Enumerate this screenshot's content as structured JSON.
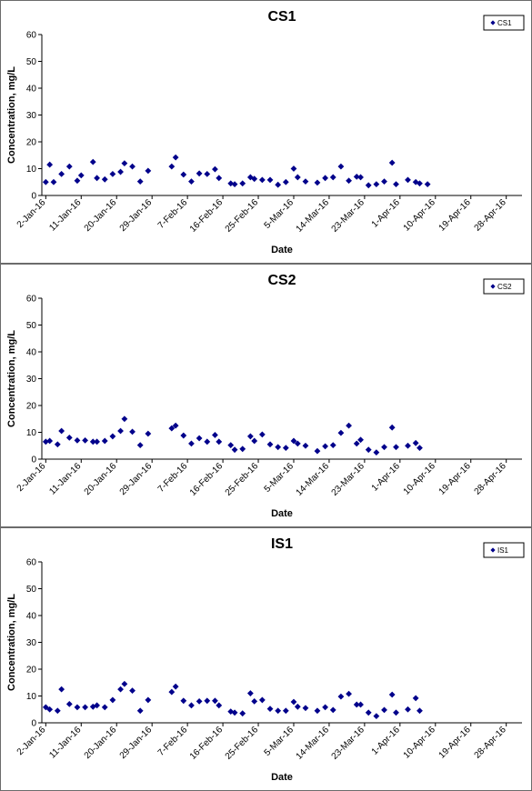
{
  "chart_data": [
    {
      "type": "scatter",
      "title": "CS1",
      "xlabel": "Date",
      "ylabel": "Concentration, mg/L",
      "ylim": [
        0,
        60
      ],
      "yticks": [
        0,
        10,
        20,
        30,
        40,
        50,
        60
      ],
      "xlim": [
        "2016-01-01",
        "2016-05-02"
      ],
      "xticks": [
        "2-Jan-16",
        "11-Jan-16",
        "20-Jan-16",
        "29-Jan-16",
        "7-Feb-16",
        "16-Feb-16",
        "25-Feb-16",
        "5-Mar-16",
        "14-Mar-16",
        "23-Mar-16",
        "1-Apr-16",
        "10-Apr-16",
        "19-Apr-16",
        "28-Apr-16"
      ],
      "legend": "top-right",
      "grid": false,
      "marker_color": "#00008b",
      "series": [
        {
          "name": "CS1",
          "points": [
            {
              "x": "2016-01-02",
              "y": 5.0
            },
            {
              "x": "2016-01-03",
              "y": 11.5
            },
            {
              "x": "2016-01-04",
              "y": 5.0
            },
            {
              "x": "2016-01-06",
              "y": 8.0
            },
            {
              "x": "2016-01-08",
              "y": 10.8
            },
            {
              "x": "2016-01-10",
              "y": 5.5
            },
            {
              "x": "2016-01-11",
              "y": 7.5
            },
            {
              "x": "2016-01-14",
              "y": 12.5
            },
            {
              "x": "2016-01-15",
              "y": 6.5
            },
            {
              "x": "2016-01-17",
              "y": 6.0
            },
            {
              "x": "2016-01-19",
              "y": 8.0
            },
            {
              "x": "2016-01-21",
              "y": 8.8
            },
            {
              "x": "2016-01-22",
              "y": 12.0
            },
            {
              "x": "2016-01-24",
              "y": 10.8
            },
            {
              "x": "2016-01-26",
              "y": 5.2
            },
            {
              "x": "2016-01-28",
              "y": 9.2
            },
            {
              "x": "2016-02-03",
              "y": 10.8
            },
            {
              "x": "2016-02-04",
              "y": 14.2
            },
            {
              "x": "2016-02-06",
              "y": 7.8
            },
            {
              "x": "2016-02-08",
              "y": 5.2
            },
            {
              "x": "2016-02-10",
              "y": 8.2
            },
            {
              "x": "2016-02-12",
              "y": 8.0
            },
            {
              "x": "2016-02-14",
              "y": 9.8
            },
            {
              "x": "2016-02-15",
              "y": 6.5
            },
            {
              "x": "2016-02-18",
              "y": 4.5
            },
            {
              "x": "2016-02-19",
              "y": 4.2
            },
            {
              "x": "2016-02-21",
              "y": 4.5
            },
            {
              "x": "2016-02-23",
              "y": 6.8
            },
            {
              "x": "2016-02-24",
              "y": 6.2
            },
            {
              "x": "2016-02-26",
              "y": 5.8
            },
            {
              "x": "2016-02-28",
              "y": 5.8
            },
            {
              "x": "2016-03-01",
              "y": 4.0
            },
            {
              "x": "2016-03-03",
              "y": 5.0
            },
            {
              "x": "2016-03-05",
              "y": 10.0
            },
            {
              "x": "2016-03-06",
              "y": 6.8
            },
            {
              "x": "2016-03-08",
              "y": 5.2
            },
            {
              "x": "2016-03-11",
              "y": 4.8
            },
            {
              "x": "2016-03-13",
              "y": 6.5
            },
            {
              "x": "2016-03-15",
              "y": 6.8
            },
            {
              "x": "2016-03-17",
              "y": 10.8
            },
            {
              "x": "2016-03-19",
              "y": 5.5
            },
            {
              "x": "2016-03-21",
              "y": 7.0
            },
            {
              "x": "2016-03-22",
              "y": 6.8
            },
            {
              "x": "2016-03-24",
              "y": 3.8
            },
            {
              "x": "2016-03-26",
              "y": 4.2
            },
            {
              "x": "2016-03-28",
              "y": 5.2
            },
            {
              "x": "2016-03-30",
              "y": 12.2
            },
            {
              "x": "2016-03-31",
              "y": 4.2
            },
            {
              "x": "2016-04-03",
              "y": 5.8
            },
            {
              "x": "2016-04-05",
              "y": 5.0
            },
            {
              "x": "2016-04-06",
              "y": 4.5
            },
            {
              "x": "2016-04-08",
              "y": 4.2
            }
          ]
        }
      ]
    },
    {
      "type": "scatter",
      "title": "CS2",
      "xlabel": "Date",
      "ylabel": "Concentration, mg/L",
      "ylim": [
        0,
        60
      ],
      "yticks": [
        0,
        10,
        20,
        30,
        40,
        50,
        60
      ],
      "xlim": [
        "2016-01-01",
        "2016-05-02"
      ],
      "xticks": [
        "2-Jan-16",
        "11-Jan-16",
        "20-Jan-16",
        "29-Jan-16",
        "7-Feb-16",
        "16-Feb-16",
        "25-Feb-16",
        "5-Mar-16",
        "14-Mar-16",
        "23-Mar-16",
        "1-Apr-16",
        "10-Apr-16",
        "19-Apr-16",
        "28-Apr-16"
      ],
      "legend": "top-right",
      "grid": false,
      "marker_color": "#00008b",
      "series": [
        {
          "name": "CS2",
          "points": [
            {
              "x": "2016-01-02",
              "y": 6.5
            },
            {
              "x": "2016-01-03",
              "y": 6.8
            },
            {
              "x": "2016-01-05",
              "y": 5.5
            },
            {
              "x": "2016-01-06",
              "y": 10.5
            },
            {
              "x": "2016-01-08",
              "y": 8.0
            },
            {
              "x": "2016-01-10",
              "y": 7.0
            },
            {
              "x": "2016-01-12",
              "y": 7.0
            },
            {
              "x": "2016-01-14",
              "y": 6.5
            },
            {
              "x": "2016-01-15",
              "y": 6.5
            },
            {
              "x": "2016-01-17",
              "y": 6.8
            },
            {
              "x": "2016-01-19",
              "y": 8.5
            },
            {
              "x": "2016-01-21",
              "y": 10.5
            },
            {
              "x": "2016-01-22",
              "y": 15.0
            },
            {
              "x": "2016-01-24",
              "y": 10.2
            },
            {
              "x": "2016-01-26",
              "y": 5.2
            },
            {
              "x": "2016-01-28",
              "y": 9.5
            },
            {
              "x": "2016-02-03",
              "y": 11.5
            },
            {
              "x": "2016-02-04",
              "y": 12.5
            },
            {
              "x": "2016-02-06",
              "y": 8.8
            },
            {
              "x": "2016-02-08",
              "y": 5.8
            },
            {
              "x": "2016-02-10",
              "y": 7.8
            },
            {
              "x": "2016-02-12",
              "y": 6.5
            },
            {
              "x": "2016-02-14",
              "y": 9.0
            },
            {
              "x": "2016-02-15",
              "y": 6.5
            },
            {
              "x": "2016-02-18",
              "y": 5.2
            },
            {
              "x": "2016-02-19",
              "y": 3.5
            },
            {
              "x": "2016-02-21",
              "y": 3.8
            },
            {
              "x": "2016-02-23",
              "y": 8.5
            },
            {
              "x": "2016-02-24",
              "y": 6.8
            },
            {
              "x": "2016-02-26",
              "y": 9.2
            },
            {
              "x": "2016-02-28",
              "y": 5.5
            },
            {
              "x": "2016-03-01",
              "y": 4.5
            },
            {
              "x": "2016-03-03",
              "y": 4.2
            },
            {
              "x": "2016-03-05",
              "y": 6.8
            },
            {
              "x": "2016-03-06",
              "y": 5.8
            },
            {
              "x": "2016-03-08",
              "y": 5.0
            },
            {
              "x": "2016-03-11",
              "y": 3.0
            },
            {
              "x": "2016-03-13",
              "y": 4.8
            },
            {
              "x": "2016-03-15",
              "y": 5.2
            },
            {
              "x": "2016-03-17",
              "y": 9.8
            },
            {
              "x": "2016-03-19",
              "y": 12.5
            },
            {
              "x": "2016-03-21",
              "y": 5.8
            },
            {
              "x": "2016-03-22",
              "y": 7.2
            },
            {
              "x": "2016-03-24",
              "y": 3.5
            },
            {
              "x": "2016-03-26",
              "y": 2.5
            },
            {
              "x": "2016-03-28",
              "y": 4.5
            },
            {
              "x": "2016-03-30",
              "y": 11.8
            },
            {
              "x": "2016-03-31",
              "y": 4.5
            },
            {
              "x": "2016-04-03",
              "y": 5.0
            },
            {
              "x": "2016-04-05",
              "y": 6.0
            },
            {
              "x": "2016-04-06",
              "y": 4.2
            }
          ]
        }
      ]
    },
    {
      "type": "scatter",
      "title": "IS1",
      "xlabel": "Date",
      "ylabel": "Concentration, mg/L",
      "ylim": [
        0,
        60
      ],
      "yticks": [
        0,
        10,
        20,
        30,
        40,
        50,
        60
      ],
      "xlim": [
        "2016-01-01",
        "2016-05-02"
      ],
      "xticks": [
        "2-Jan-16",
        "11-Jan-16",
        "20-Jan-16",
        "29-Jan-16",
        "7-Feb-16",
        "16-Feb-16",
        "25-Feb-16",
        "5-Mar-16",
        "14-Mar-16",
        "23-Mar-16",
        "1-Apr-16",
        "10-Apr-16",
        "19-Apr-16",
        "28-Apr-16"
      ],
      "legend": "top-right",
      "grid": false,
      "marker_color": "#00008b",
      "series": [
        {
          "name": "IS1",
          "points": [
            {
              "x": "2016-01-02",
              "y": 5.8
            },
            {
              "x": "2016-01-03",
              "y": 5.0
            },
            {
              "x": "2016-01-05",
              "y": 4.5
            },
            {
              "x": "2016-01-06",
              "y": 12.5
            },
            {
              "x": "2016-01-08",
              "y": 7.0
            },
            {
              "x": "2016-01-10",
              "y": 5.8
            },
            {
              "x": "2016-01-12",
              "y": 5.8
            },
            {
              "x": "2016-01-14",
              "y": 6.0
            },
            {
              "x": "2016-01-15",
              "y": 6.5
            },
            {
              "x": "2016-01-17",
              "y": 5.8
            },
            {
              "x": "2016-01-19",
              "y": 8.5
            },
            {
              "x": "2016-01-21",
              "y": 12.5
            },
            {
              "x": "2016-01-22",
              "y": 14.5
            },
            {
              "x": "2016-01-24",
              "y": 12.0
            },
            {
              "x": "2016-01-26",
              "y": 4.5
            },
            {
              "x": "2016-01-28",
              "y": 8.5
            },
            {
              "x": "2016-02-03",
              "y": 11.5
            },
            {
              "x": "2016-02-04",
              "y": 13.5
            },
            {
              "x": "2016-02-06",
              "y": 8.2
            },
            {
              "x": "2016-02-08",
              "y": 6.5
            },
            {
              "x": "2016-02-10",
              "y": 8.0
            },
            {
              "x": "2016-02-12",
              "y": 8.2
            },
            {
              "x": "2016-02-14",
              "y": 8.2
            },
            {
              "x": "2016-02-15",
              "y": 6.5
            },
            {
              "x": "2016-02-18",
              "y": 4.2
            },
            {
              "x": "2016-02-19",
              "y": 3.8
            },
            {
              "x": "2016-02-21",
              "y": 3.5
            },
            {
              "x": "2016-02-23",
              "y": 11.0
            },
            {
              "x": "2016-02-24",
              "y": 8.0
            },
            {
              "x": "2016-02-26",
              "y": 8.5
            },
            {
              "x": "2016-02-28",
              "y": 5.2
            },
            {
              "x": "2016-03-01",
              "y": 4.5
            },
            {
              "x": "2016-03-03",
              "y": 4.5
            },
            {
              "x": "2016-03-05",
              "y": 7.8
            },
            {
              "x": "2016-03-06",
              "y": 6.0
            },
            {
              "x": "2016-03-08",
              "y": 5.5
            },
            {
              "x": "2016-03-11",
              "y": 4.5
            },
            {
              "x": "2016-03-13",
              "y": 5.8
            },
            {
              "x": "2016-03-15",
              "y": 4.8
            },
            {
              "x": "2016-03-17",
              "y": 9.8
            },
            {
              "x": "2016-03-19",
              "y": 10.8
            },
            {
              "x": "2016-03-21",
              "y": 6.8
            },
            {
              "x": "2016-03-22",
              "y": 6.8
            },
            {
              "x": "2016-03-24",
              "y": 3.8
            },
            {
              "x": "2016-03-26",
              "y": 2.5
            },
            {
              "x": "2016-03-28",
              "y": 4.8
            },
            {
              "x": "2016-03-30",
              "y": 10.5
            },
            {
              "x": "2016-03-31",
              "y": 3.8
            },
            {
              "x": "2016-04-03",
              "y": 5.0
            },
            {
              "x": "2016-04-05",
              "y": 9.2
            },
            {
              "x": "2016-04-06",
              "y": 4.5
            }
          ]
        }
      ]
    }
  ]
}
